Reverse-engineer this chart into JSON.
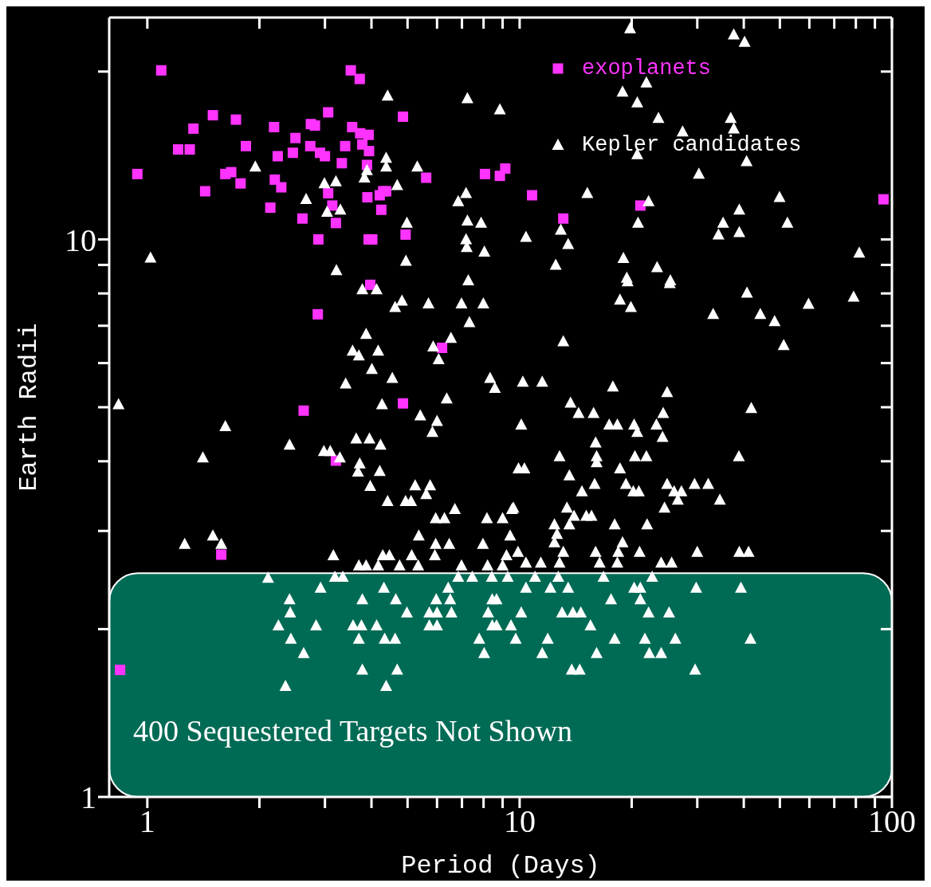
{
  "chart_data": {
    "type": "scatter",
    "xlabel": "Period (Days)",
    "ylabel": "Earth Radii",
    "log": "xy",
    "legend": "top right",
    "xlim": [
      0.79,
      100
    ],
    "ylim": [
      1,
      25
    ],
    "xticks": [
      1,
      {
        "value": 2,
        "label": null
      },
      {
        "value": 3,
        "label": null
      },
      {
        "value": 4,
        "label": null
      },
      {
        "value": 5,
        "label": null
      },
      {
        "value": 6,
        "label": null
      },
      {
        "value": 7,
        "label": null
      },
      {
        "value": 8,
        "label": null
      },
      {
        "value": 9,
        "label": null
      },
      10,
      {
        "value": 20,
        "label": null
      },
      {
        "value": 30,
        "label": null
      },
      {
        "value": 40,
        "label": null
      },
      {
        "value": 50,
        "label": null
      },
      {
        "value": 60,
        "label": null
      },
      {
        "value": 70,
        "label": null
      },
      {
        "value": 80,
        "label": null
      },
      {
        "value": 90,
        "label": null
      },
      100
    ],
    "yticks": [
      1,
      {
        "value": 2,
        "label": null
      },
      {
        "value": 3,
        "label": null
      },
      {
        "value": 4,
        "label": null
      },
      {
        "value": 5,
        "label": null
      },
      {
        "value": 6,
        "label": null
      },
      {
        "value": 7,
        "label": null
      },
      {
        "value": 8,
        "label": null
      },
      {
        "value": 9,
        "label": null
      },
      10,
      {
        "value": 20,
        "label": null
      }
    ],
    "bands": [
      {
        "axis": "y",
        "from": 1,
        "to": 2.52,
        "label": "400 Sequestered Targets Not Shown",
        "color": "#00d6aa"
      }
    ],
    "series": [
      {
        "name": "exoplanets",
        "color": "#ff33ff",
        "marker": "square",
        "x": [
          1.09,
          0.94,
          1.21,
          1.3,
          1.33,
          1.5,
          1.43,
          1.62,
          1.68,
          1.73,
          1.78,
          1.84,
          2.14,
          2.19,
          2.2,
          2.24,
          2.29,
          2.46,
          2.5,
          2.61,
          2.74,
          2.75,
          2.82,
          2.88,
          2.91,
          3.0,
          3.06,
          3.06,
          3.14,
          3.21,
          3.33,
          3.4,
          3.52,
          3.55,
          3.72,
          3.73,
          3.78,
          3.89,
          3.93,
          3.94,
          3.9,
          3.97,
          3.93,
          4.02,
          4.21,
          4.3,
          4.25,
          4.38,
          4.86,
          4.94,
          4.86,
          5.61,
          2.87,
          2.63,
          3.21,
          6.19,
          8.07,
          8.85,
          9.15,
          10.8,
          13.1,
          21.1,
          94.9,
          1.58,
          0.845
        ],
        "values": [
          20.1,
          13.1,
          14.5,
          14.5,
          15.8,
          16.7,
          12.2,
          13.1,
          13.2,
          16.4,
          12.6,
          14.7,
          11.4,
          15.9,
          12.8,
          14.1,
          12.4,
          14.3,
          15.2,
          10.9,
          14.7,
          16.1,
          16.0,
          10.0,
          14.3,
          14.1,
          16.9,
          12.1,
          11.5,
          10.7,
          13.7,
          14.7,
          20.1,
          15.9,
          19.4,
          15.5,
          14.8,
          13.6,
          15.4,
          14.4,
          11.9,
          8.29,
          10.0,
          10.0,
          12.0,
          12.2,
          11.3,
          12.2,
          16.6,
          10.2,
          5.08,
          12.9,
          7.34,
          4.93,
          4.01,
          6.39,
          13.1,
          13.0,
          13.4,
          12.0,
          10.9,
          11.5,
          11.8,
          2.72,
          1.69
        ]
      },
      {
        "name": "Kepler candidates",
        "color": "#ffffff",
        "marker": "triangle",
        "x": [
          19.8,
          37.6,
          40.2,
          21.9,
          18.9,
          20.7,
          23.6,
          36.9,
          27.4,
          37.6,
          20.7,
          40.7,
          30.3,
          15.2,
          22.2,
          49.9,
          38.9,
          20.8,
          35.2,
          52.4,
          34.2,
          38.9,
          10.4,
          12.9,
          13.5,
          12.5,
          19.0,
          23.4,
          19.4,
          25.4,
          81.7,
          4.42,
          7.24,
          8.85,
          1.95,
          4.38,
          4.38,
          5.31,
          3.89,
          3.83,
          2.99,
          3.21,
          4.69,
          2.67,
          7.18,
          6.84,
          3.04,
          3.3,
          4.98,
          7.24,
          7.88,
          7.18,
          7.21,
          8.04,
          1.02,
          4.95,
          3.22,
          7.28,
          3.78,
          4.13,
          4.83,
          4.63,
          5.69,
          6.98,
          7.99,
          7.33,
          3.87,
          4.17,
          3.56,
          3.7,
          5.86,
          6.06,
          6.54,
          4.01,
          4.55,
          3.41,
          6.37,
          8.33,
          8.58,
          4.27,
          5.41,
          6.0,
          5.83,
          0.837,
          1.62,
          2.41,
          1.41,
          3.64,
          3.95,
          4.23,
          2.98,
          3.1,
          3.29,
          3.72,
          3.68,
          4.21,
          3.97,
          5.24,
          5.75,
          5.61,
          4.42,
          4.94,
          5.11,
          6.7,
          5.95,
          6.28,
          8.17,
          9.0,
          9.54,
          1.5,
          1.26,
          1.58,
          5.36,
          5.95,
          6.47,
          7.97,
          9.43,
          3.16,
          4.29,
          4.47,
          5.13,
          5.92,
          9.22,
          3.7,
          3.87,
          4.17,
          4.76,
          5.34,
          6.98,
          8.2,
          9.0,
          19.5,
          25.3,
          40.8,
          59.7,
          78.9,
          18.6,
          19.9,
          33.1,
          44.3,
          48.4,
          51.2,
          13.1,
          10.2,
          11.5,
          17.8,
          24.9,
          13.7,
          41.9,
          14.4,
          15.8,
          24.3,
          10.1,
          17.4,
          18.3,
          20.3,
          23.3,
          20.7,
          24.2,
          16.0,
          16.1,
          12.8,
          20.4,
          21.9,
          38.8,
          16.1,
          9.93,
          10.3,
          18.6,
          13.6,
          15.9,
          19.3,
          24.9,
          29.5,
          32.1,
          14.7,
          20.2,
          20.9,
          26.0,
          27.2,
          26.6,
          34.5,
          9.62,
          13.4,
          24.5,
          14.0,
          15.1,
          15.6,
          12.4,
          13.6,
          18.0,
          22.0,
          12.6,
          12.4,
          18.9,
          9.9,
          13.1,
          16.0,
          18.4,
          21.0,
          30.0,
          38.9,
          41.2,
          10.4,
          11.4,
          12.8,
          16.4,
          18.3,
          24.0,
          25.6,
          2.11,
          3.19,
          3.35,
          2.92,
          3.78,
          4.32,
          2.41,
          2.42,
          2.25,
          2.84,
          3.57,
          3.76,
          4.13,
          4.65,
          4.98,
          3.7,
          4.34,
          4.63,
          2.43,
          2.63,
          3.78,
          4.69,
          2.35,
          4.38,
          5.72,
          6.0,
          5.97,
          6.51,
          6.43,
          6.56,
          5.72,
          6.0,
          6.84,
          7.46,
          8.42,
          9.29,
          8.23,
          8.44,
          8.67,
          8.44,
          8.67,
          7.79,
          8.03,
          9.48,
          9.76,
          10.1,
          10.4,
          11.0,
          11.9,
          11.5,
          12.1,
          12.7,
          13.5,
          13.0,
          13.9,
          14.6,
          15.5,
          16.1,
          13.8,
          14.5,
          16.8,
          17.6,
          18.0,
          20.3,
          21.1,
          21.1,
          22.7,
          22.2,
          25.2,
          21.7,
          26.2,
          22.3,
          24.0,
          29.8,
          29.6,
          39.3,
          41.7
        ],
        "values": [
          23.9,
          23.3,
          22.6,
          19.1,
          18.4,
          17.6,
          16.5,
          16.5,
          15.6,
          15.8,
          14.2,
          13.8,
          13.1,
          12.1,
          11.7,
          11.9,
          11.3,
          10.7,
          10.7,
          10.7,
          10.2,
          10.3,
          10.1,
          10.4,
          9.8,
          9.0,
          9.25,
          8.91,
          8.53,
          8.44,
          9.46,
          18.1,
          17.9,
          17.1,
          13.5,
          14.0,
          13.5,
          13.5,
          13.3,
          12.9,
          12.6,
          12.7,
          12.5,
          11.8,
          12.1,
          11.7,
          11.2,
          11.3,
          10.7,
          10.8,
          10.7,
          10.0,
          9.68,
          9.5,
          9.27,
          9.15,
          8.8,
          8.44,
          8.13,
          8.13,
          7.76,
          7.56,
          7.67,
          7.67,
          7.67,
          7.1,
          6.76,
          6.31,
          6.31,
          6.19,
          6.42,
          6.09,
          6.65,
          5.85,
          5.64,
          5.51,
          5.18,
          5.64,
          5.41,
          5.06,
          4.83,
          4.72,
          4.51,
          5.06,
          4.62,
          4.28,
          4.06,
          4.39,
          4.39,
          4.28,
          4.17,
          4.17,
          4.06,
          3.96,
          3.83,
          3.84,
          3.61,
          3.62,
          3.62,
          3.49,
          3.39,
          3.39,
          3.39,
          3.28,
          3.16,
          3.16,
          3.16,
          3.16,
          3.28,
          2.94,
          2.84,
          2.84,
          2.94,
          2.84,
          2.84,
          2.84,
          2.94,
          2.71,
          2.71,
          2.71,
          2.71,
          2.71,
          2.71,
          2.6,
          2.6,
          2.6,
          2.6,
          2.6,
          2.6,
          2.6,
          2.6,
          8.4,
          8.34,
          8.02,
          7.66,
          7.89,
          7.79,
          7.56,
          7.34,
          7.34,
          7.13,
          6.46,
          6.56,
          5.55,
          5.55,
          5.44,
          5.32,
          5.09,
          4.98,
          4.88,
          4.88,
          4.88,
          4.65,
          4.65,
          4.65,
          4.65,
          4.65,
          4.51,
          4.42,
          4.32,
          4.08,
          4.08,
          4.08,
          4.08,
          4.08,
          3.98,
          3.88,
          3.88,
          3.88,
          3.77,
          3.64,
          3.64,
          3.64,
          3.64,
          3.64,
          3.53,
          3.53,
          3.53,
          3.53,
          3.53,
          3.41,
          3.41,
          3.3,
          3.3,
          3.3,
          3.19,
          3.19,
          3.19,
          3.08,
          3.08,
          3.08,
          3.08,
          2.96,
          2.86,
          2.86,
          2.75,
          2.75,
          2.75,
          2.75,
          2.75,
          2.75,
          2.75,
          2.75,
          2.63,
          2.63,
          2.63,
          2.63,
          2.63,
          2.63,
          2.63,
          2.47,
          2.48,
          2.48,
          2.37,
          2.26,
          2.37,
          2.26,
          2.14,
          2.03,
          2.03,
          2.03,
          2.03,
          2.03,
          2.26,
          2.14,
          1.92,
          1.92,
          1.92,
          1.92,
          1.81,
          1.69,
          1.69,
          1.58,
          1.58,
          2.14,
          2.14,
          2.26,
          2.26,
          2.37,
          2.14,
          2.03,
          2.03,
          2.48,
          2.48,
          2.48,
          2.48,
          2.14,
          2.26,
          2.26,
          2.03,
          2.03,
          1.92,
          1.81,
          2.03,
          1.92,
          2.14,
          2.37,
          2.48,
          1.92,
          1.81,
          2.37,
          2.48,
          2.37,
          2.14,
          2.14,
          2.14,
          2.03,
          1.81,
          1.69,
          1.69,
          2.48,
          2.26,
          1.92,
          2.37,
          2.37,
          2.26,
          2.48,
          2.14,
          2.14,
          1.92,
          1.92,
          1.81,
          1.81,
          2.37,
          1.69,
          2.37,
          1.92
        ]
      }
    ]
  }
}
